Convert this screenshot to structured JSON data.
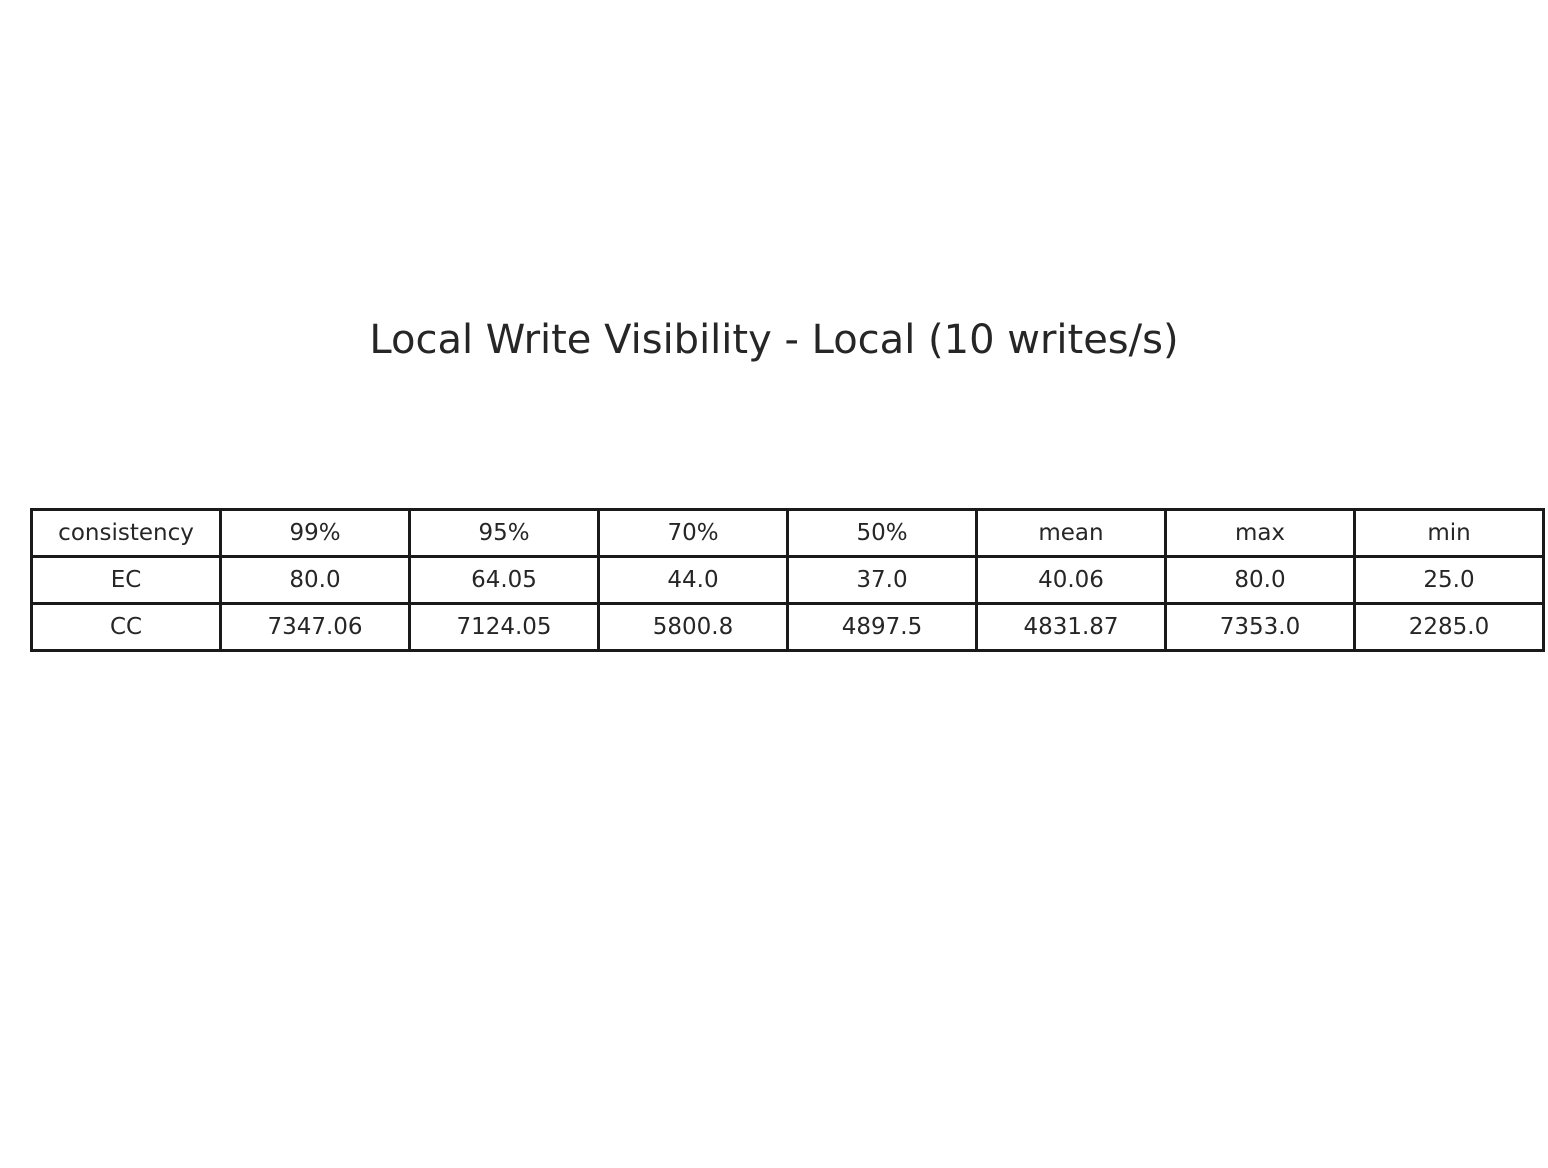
{
  "chart_data": {
    "type": "table",
    "title": "Local Write Visibility - Local (10 writes/s)",
    "columns": [
      "consistency",
      "99%",
      "95%",
      "70%",
      "50%",
      "mean",
      "max",
      "min"
    ],
    "rows": [
      [
        "EC",
        "80.0",
        "64.05",
        "44.0",
        "37.0",
        "40.06",
        "80.0",
        "25.0"
      ],
      [
        "CC",
        "7347.06",
        "7124.05",
        "5800.8",
        "4897.5",
        "4831.87",
        "7353.0",
        "2285.0"
      ]
    ]
  }
}
